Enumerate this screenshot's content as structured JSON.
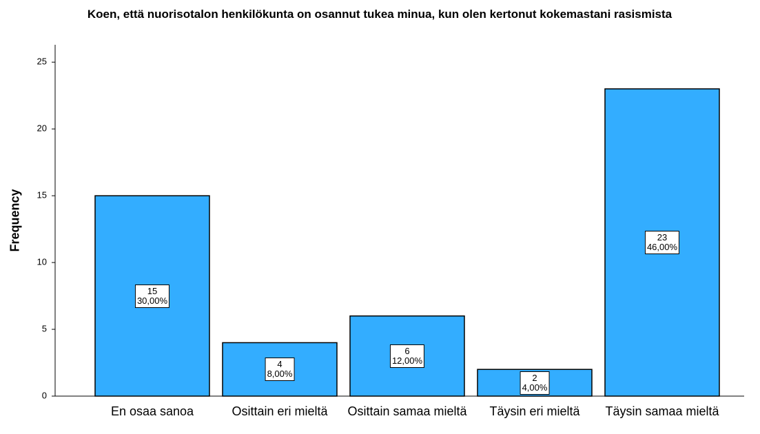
{
  "chart_data": {
    "type": "bar",
    "title": "Koen, että nuorisotalon henkilökunta on osannut tukea minua, kun olen kertonut kokemastani rasismista",
    "y_label": "Frequency",
    "categories": [
      "En osaa sanoa",
      "Osittain eri mieltä",
      "Osittain samaa mieltä",
      "Täysin eri mieltä",
      "Täysin samaa mieltä"
    ],
    "values": [
      15,
      4,
      6,
      2,
      23
    ],
    "percent_labels": [
      "30,00%",
      "8,00%",
      "12,00%",
      "4,00%",
      "46,00%"
    ],
    "color": "#33adff",
    "ylim": [
      0,
      26.3
    ],
    "yticks": [
      0,
      5,
      10,
      15,
      20,
      25
    ],
    "grid": false
  }
}
